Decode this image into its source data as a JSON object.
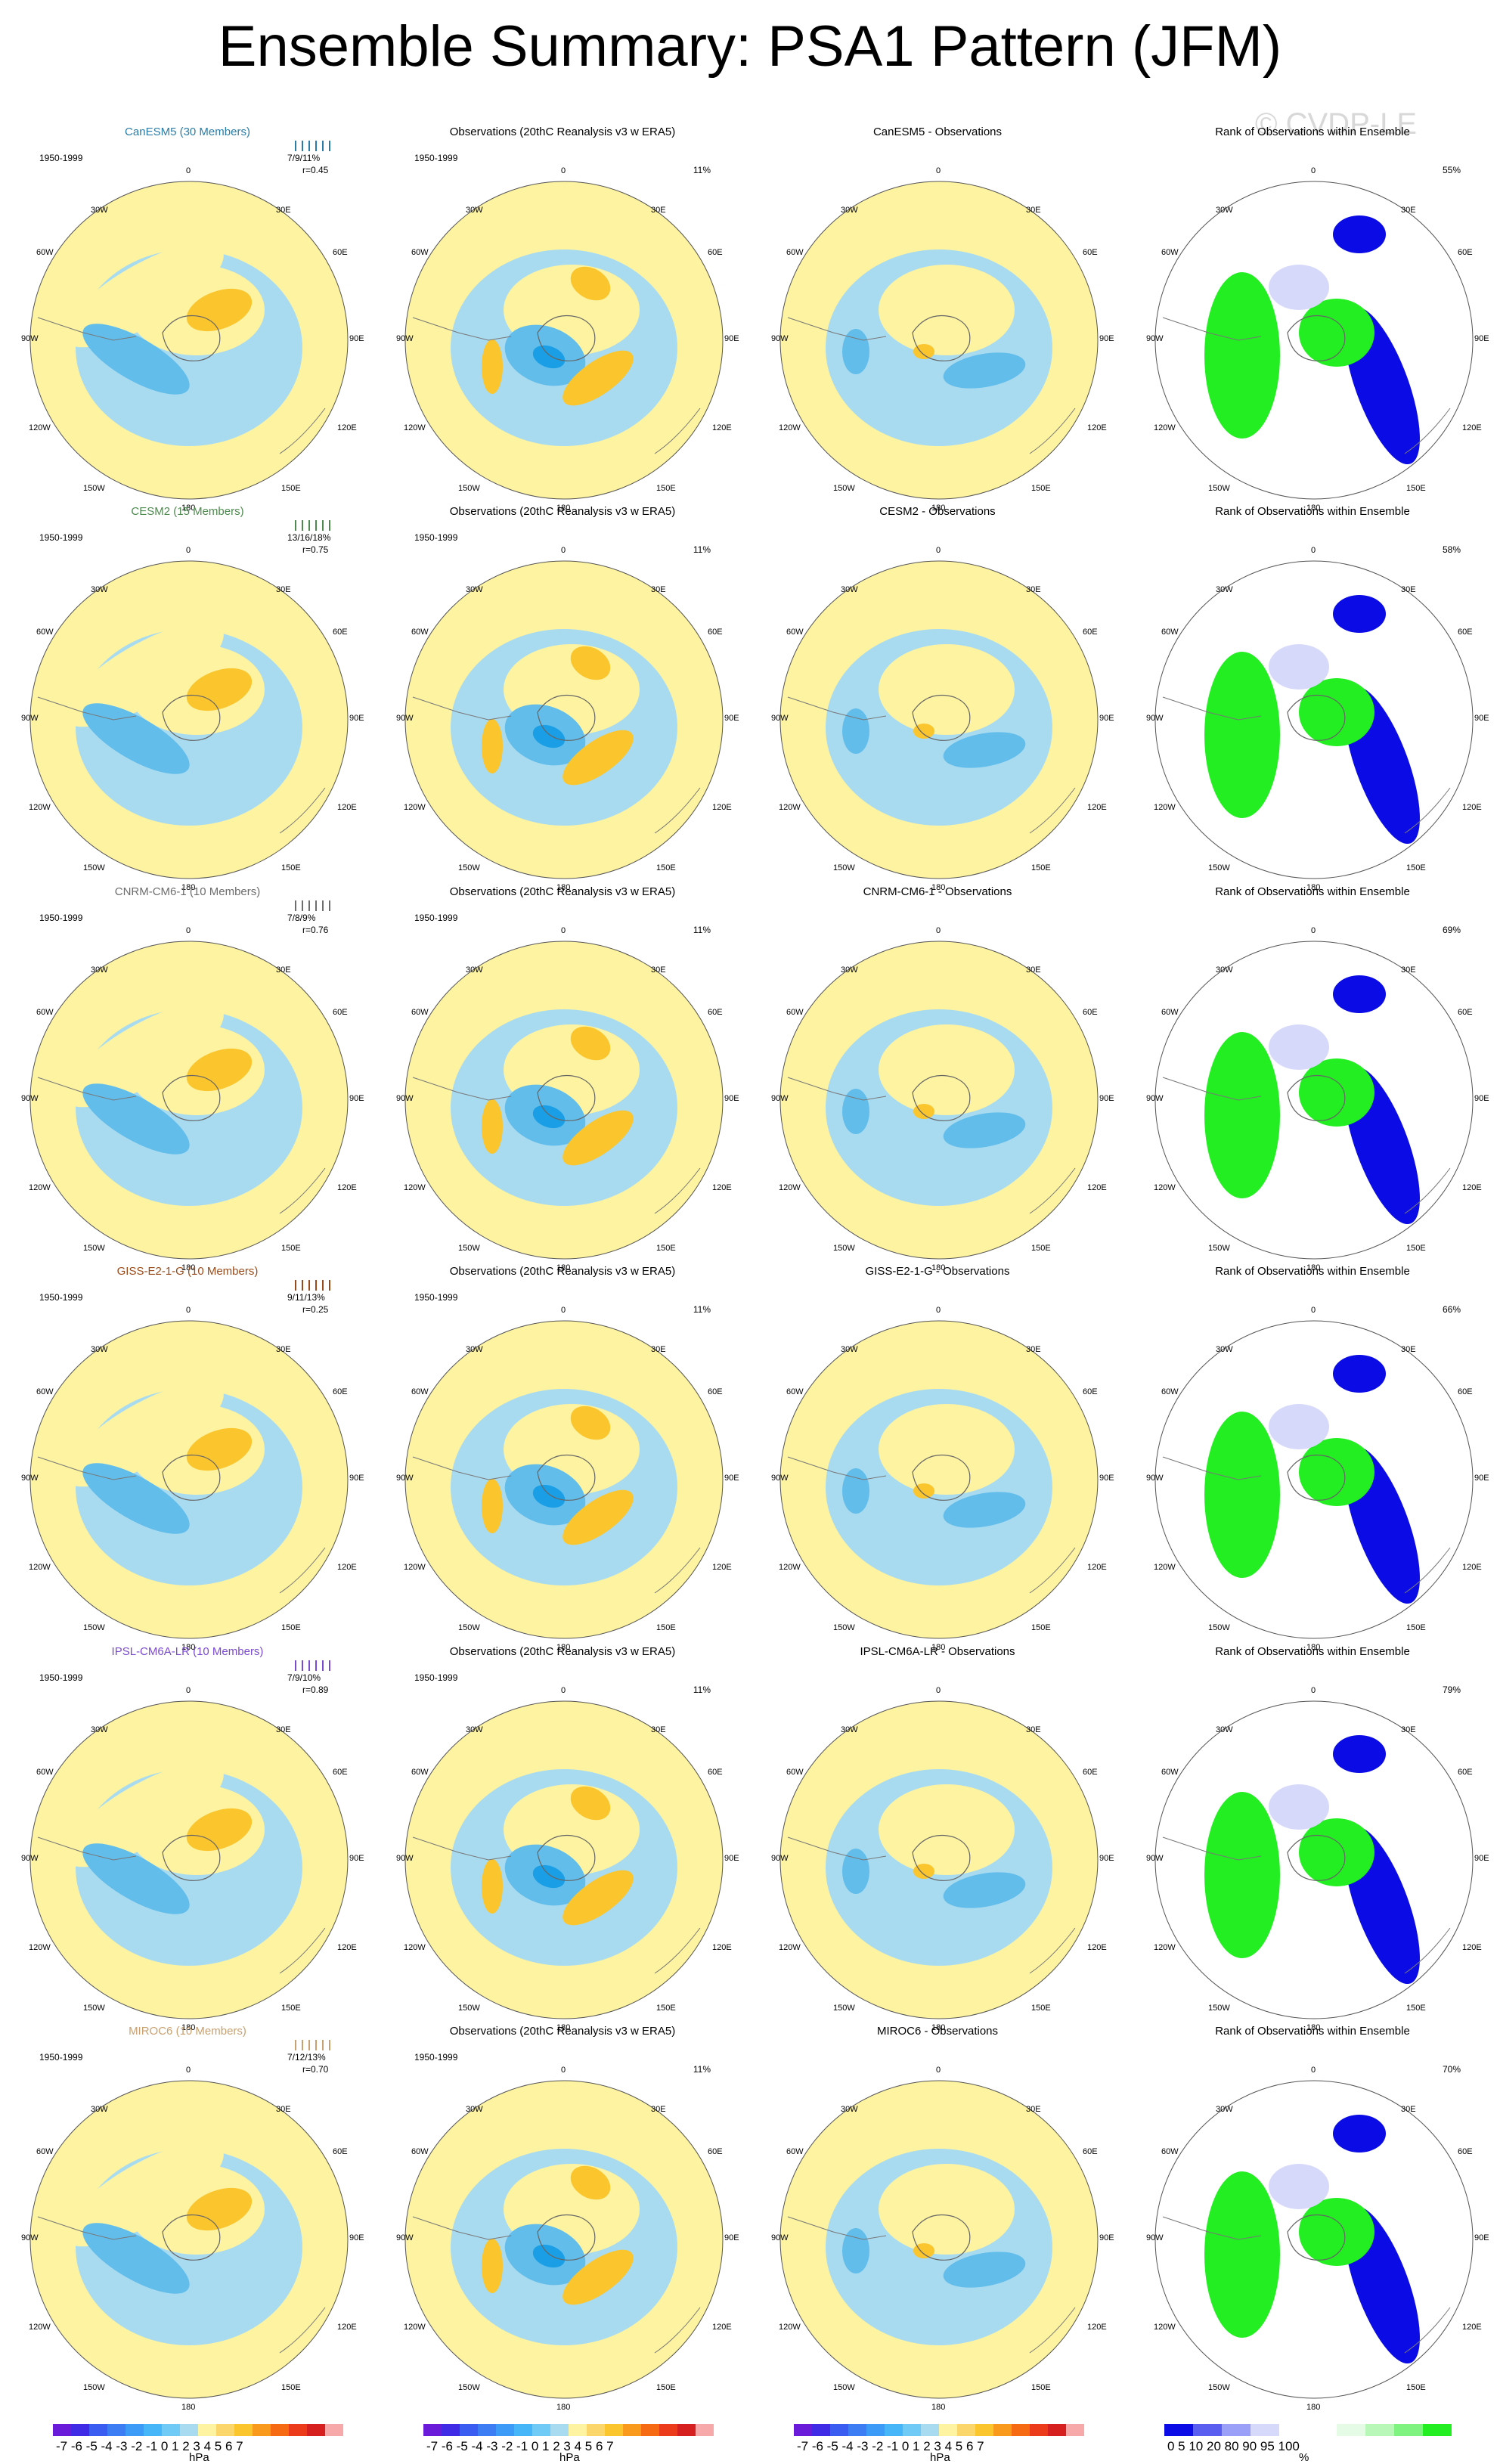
{
  "title": "Ensemble Summary: PSA1 Pattern (JFM)",
  "watermark": "© CVDP-LE",
  "colors": {
    "ocean_positive": "#fdf3a1",
    "ocean_negative": "#a9dbf0",
    "strong_negative": "#62bdeb",
    "very_negative": "#1a9fe6",
    "positive_mid": "#fbc52e",
    "rank_low": "#0b0be6",
    "rank_lowmid": "#d7d9fb",
    "rank_high": "#22ee22",
    "rank_highmid": "#e6fbe6"
  },
  "lon_labels": {
    "top": "0",
    "bottom": "180",
    "l1": "30W",
    "l2": "60W",
    "l3": "90W",
    "l4": "120W",
    "l5": "150W",
    "r1": "30E",
    "r2": "60E",
    "r3": "90E",
    "r4": "120E",
    "r5": "150E"
  },
  "obs_title": "Observations (20thC Reanalysis v3 w ERA5)",
  "rank_title": "Rank of Observations within Ensemble",
  "period": "1950-1999",
  "obs_pct": "11%",
  "rows": [
    {
      "model_title": "CanESM5 (30 Members)",
      "model_color": "#2a7ca6",
      "stats_line1": "7/9/11%",
      "stats_line2": "r=0.45",
      "diff_title": "CanESM5 - Observations",
      "rank_pct": "55%"
    },
    {
      "model_title": "CESM2 (15 Members)",
      "model_color": "#4d8a4d",
      "stats_line1": "13/16/18%",
      "stats_line2": "r=0.75",
      "diff_title": "CESM2 - Observations",
      "rank_pct": "58%"
    },
    {
      "model_title": "CNRM-CM6-1 (10 Members)",
      "model_color": "#6d6d6d",
      "stats_line1": "7/8/9%",
      "stats_line2": "r=0.76",
      "diff_title": "CNRM-CM6-1 - Observations",
      "rank_pct": "69%"
    },
    {
      "model_title": "GISS-E2-1-G (10 Members)",
      "model_color": "#9a4a1a",
      "stats_line1": "9/11/13%",
      "stats_line2": "r=0.25",
      "diff_title": "GISS-E2-1-G - Observations",
      "rank_pct": "66%"
    },
    {
      "model_title": "IPSL-CM6A-LR (10 Members)",
      "model_color": "#7a4ad0",
      "stats_line1": "7/9/10%",
      "stats_line2": "r=0.89",
      "diff_title": "IPSL-CM6A-LR - Observations",
      "rank_pct": "79%"
    },
    {
      "model_title": "MIROC6 (10 Members)",
      "model_color": "#c9a070",
      "stats_line1": "7/12/13%",
      "stats_line2": "r=0.70",
      "diff_title": "MIROC6 - Observations",
      "rank_pct": "70%"
    }
  ],
  "colorbar_hpa": {
    "ticks": "-7 -6 -5 -4 -3 -2 -1 0  1  2  3  4  5  6  7",
    "unit": "hPa",
    "colors": [
      "#6a1bd9",
      "#3f2be6",
      "#3a5cf0",
      "#3c7df4",
      "#3b9bf7",
      "#46b6f8",
      "#6fcaf6",
      "#a9dbf0",
      "#fdf3a1",
      "#fbd66b",
      "#fbc52e",
      "#f99a1c",
      "#f66a14",
      "#ec3b1a",
      "#d62020",
      "#f7a9a9"
    ]
  },
  "colorbar_rank": {
    "ticks": "0   5  10     20     80     90  95 100",
    "unit": "%",
    "colors": [
      "#0b0be6",
      "#5a5ef0",
      "#9aa0f7",
      "#d7d9fb",
      "#ffffff",
      "#ffffff",
      "#e6fbe6",
      "#b9f7b9",
      "#7ff37f",
      "#22ee22"
    ]
  }
}
